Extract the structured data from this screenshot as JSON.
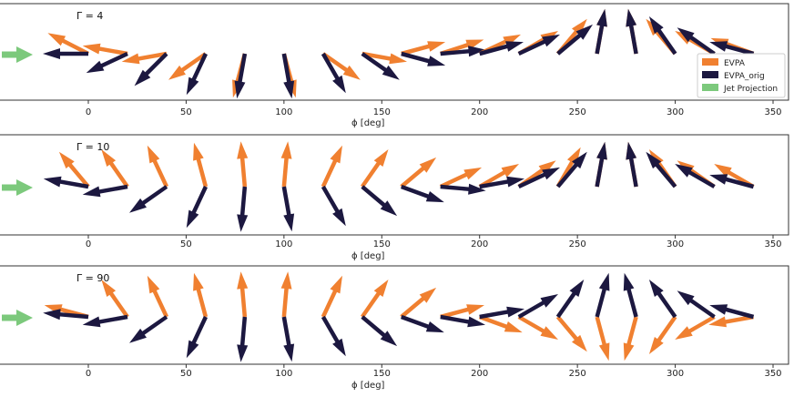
{
  "colors": {
    "evpa": "#f08030",
    "evpa_orig": "#1c1840",
    "jet": "#7cc97c",
    "axis": "#333333"
  },
  "chart_data": [
    {
      "type": "quiver",
      "panel_label": "Γ = 4",
      "xlabel": "ϕ [deg]",
      "xlim": [
        -22,
        350
      ],
      "xticks": [
        0,
        50,
        100,
        150,
        200,
        250,
        300,
        350
      ],
      "phi": [
        0,
        20,
        40,
        60,
        80,
        100,
        120,
        140,
        160,
        180,
        200,
        220,
        240,
        260,
        280,
        300,
        320,
        340
      ],
      "evpa_angle_deg": [
        153,
        170,
        190,
        215,
        255,
        285,
        325,
        350,
        15,
        18,
        25,
        30,
        50,
        80,
        100,
        130,
        150,
        160
      ],
      "evpa_orig_angle_deg": [
        180,
        205,
        225,
        245,
        260,
        280,
        300,
        325,
        345,
        5,
        15,
        25,
        40,
        80,
        100,
        125,
        145,
        165
      ],
      "legend": [
        "EVPA",
        "EVPA_orig",
        "Jet Projection"
      ],
      "legend_position": "right"
    },
    {
      "type": "quiver",
      "panel_label": "Γ =  10",
      "xlabel": "ϕ [deg]",
      "xlim": [
        -22,
        350
      ],
      "xticks": [
        0,
        50,
        100,
        150,
        200,
        250,
        300,
        350
      ],
      "phi": [
        0,
        20,
        40,
        60,
        80,
        100,
        120,
        140,
        160,
        180,
        200,
        220,
        240,
        260,
        280,
        300,
        320,
        340
      ],
      "evpa_angle_deg": [
        130,
        125,
        115,
        105,
        95,
        85,
        65,
        55,
        40,
        25,
        30,
        35,
        60,
        80,
        100,
        125,
        145,
        150
      ],
      "evpa_orig_angle_deg": [
        170,
        190,
        215,
        245,
        265,
        280,
        300,
        320,
        340,
        355,
        10,
        25,
        50,
        80,
        100,
        130,
        150,
        165
      ],
      "legend_position": "none"
    },
    {
      "type": "quiver",
      "panel_label": "Γ =  90",
      "xlabel": "ϕ [deg]",
      "xlim": [
        -22,
        350
      ],
      "xticks": [
        0,
        50,
        100,
        150,
        200,
        250,
        300,
        350
      ],
      "phi": [
        0,
        20,
        40,
        60,
        80,
        100,
        120,
        140,
        160,
        180,
        200,
        220,
        240,
        260,
        280,
        300,
        320,
        340
      ],
      "evpa_angle_deg": [
        165,
        125,
        115,
        105,
        95,
        85,
        65,
        55,
        40,
        15,
        340,
        330,
        310,
        285,
        255,
        235,
        210,
        190
      ],
      "evpa_orig_angle_deg": [
        175,
        190,
        215,
        245,
        265,
        280,
        300,
        320,
        340,
        350,
        10,
        30,
        55,
        75,
        105,
        125,
        145,
        165
      ],
      "legend_position": "none"
    }
  ]
}
